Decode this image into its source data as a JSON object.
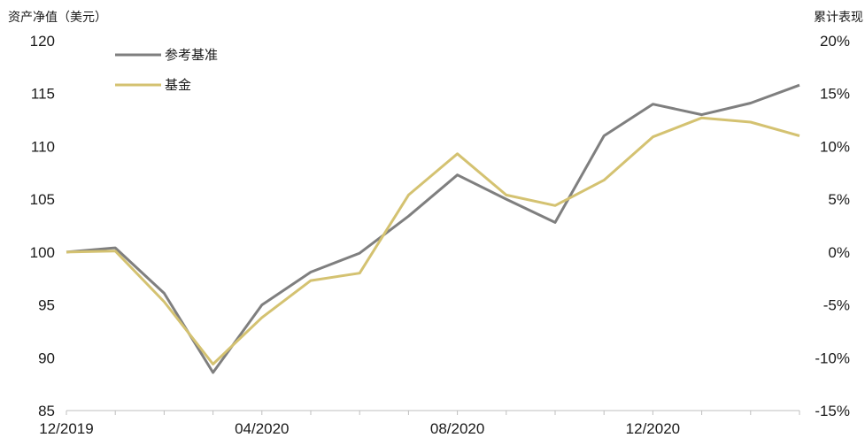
{
  "chart_data": {
    "type": "line",
    "ylabel_left": "资产净值（美元）",
    "ylabel_right": "累计表现",
    "x": [
      "12/2019",
      "01/2020",
      "02/2020",
      "03/2020",
      "04/2020",
      "05/2020",
      "06/2020",
      "07/2020",
      "08/2020",
      "09/2020",
      "10/2020",
      "11/2020",
      "12/2020",
      "01/2021",
      "02/2021",
      "03/2021"
    ],
    "x_tick_labels": [
      "12/2019",
      "04/2020",
      "08/2020",
      "12/2020"
    ],
    "series": [
      {
        "name": "参考基准",
        "color": "#7f7f7f",
        "values": [
          100.0,
          100.4,
          96.1,
          88.6,
          95.0,
          98.1,
          99.9,
          103.4,
          107.3,
          105.0,
          102.8,
          111.0,
          114.0,
          113.0,
          114.1,
          115.8
        ]
      },
      {
        "name": "基金",
        "color": "#d4c271",
        "values": [
          100.0,
          100.1,
          95.3,
          89.4,
          93.8,
          97.3,
          98.0,
          105.4,
          109.3,
          105.4,
          104.4,
          106.8,
          110.9,
          112.7,
          112.3,
          111.0
        ]
      }
    ],
    "ylim_left": [
      85,
      120
    ],
    "yticks_left": [
      "85",
      "90",
      "95",
      "100",
      "105",
      "110",
      "115",
      "120"
    ],
    "ylim_right": [
      -15,
      20
    ],
    "yticks_right": [
      "-15%",
      "-10%",
      "-5%",
      "0%",
      "5%",
      "10%",
      "15%",
      "20%"
    ],
    "grid": false,
    "legend_position": "top-left"
  }
}
